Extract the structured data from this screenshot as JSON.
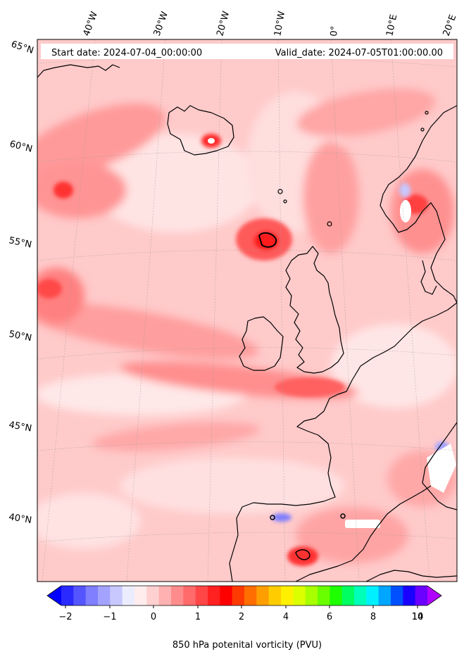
{
  "header": {
    "start_date": "Start date: 2024-07-04_00:00:00",
    "valid_date": "Valid_date: 2024-07-05T01:00:00.00"
  },
  "axes": {
    "lon_labels": [
      "40°W",
      "30°W",
      "20°W",
      "10°W",
      "0°",
      "10°E",
      "20°E"
    ],
    "lat_labels": [
      "65°N",
      "60°N",
      "55°N",
      "50°N",
      "45°N",
      "40°N"
    ]
  },
  "colorbar": {
    "label": "850 hPa potenital vorticity (PVU)",
    "tick_labels": [
      "−2",
      "−1",
      "0",
      "1",
      "2",
      "4",
      "6",
      "8",
      "10",
      "14"
    ],
    "colors": [
      "#0000ff",
      "#2a2aff",
      "#5555ff",
      "#7f7fff",
      "#a3a3ff",
      "#c8c8ff",
      "#ececff",
      "#ffecec",
      "#ffd0d0",
      "#ffb0b0",
      "#ff8c8c",
      "#ff6a6a",
      "#ff4646",
      "#ff2020",
      "#ff0000",
      "#ff3a00",
      "#ff6e00",
      "#ff9e00",
      "#ffcc00",
      "#fff000",
      "#dcff00",
      "#a8ff00",
      "#6aff00",
      "#1eff00",
      "#00ff60",
      "#00ffb8",
      "#00f0ff",
      "#00a6ff",
      "#0050ff",
      "#1a00ff",
      "#6a00ff",
      "#b000ff"
    ]
  }
}
